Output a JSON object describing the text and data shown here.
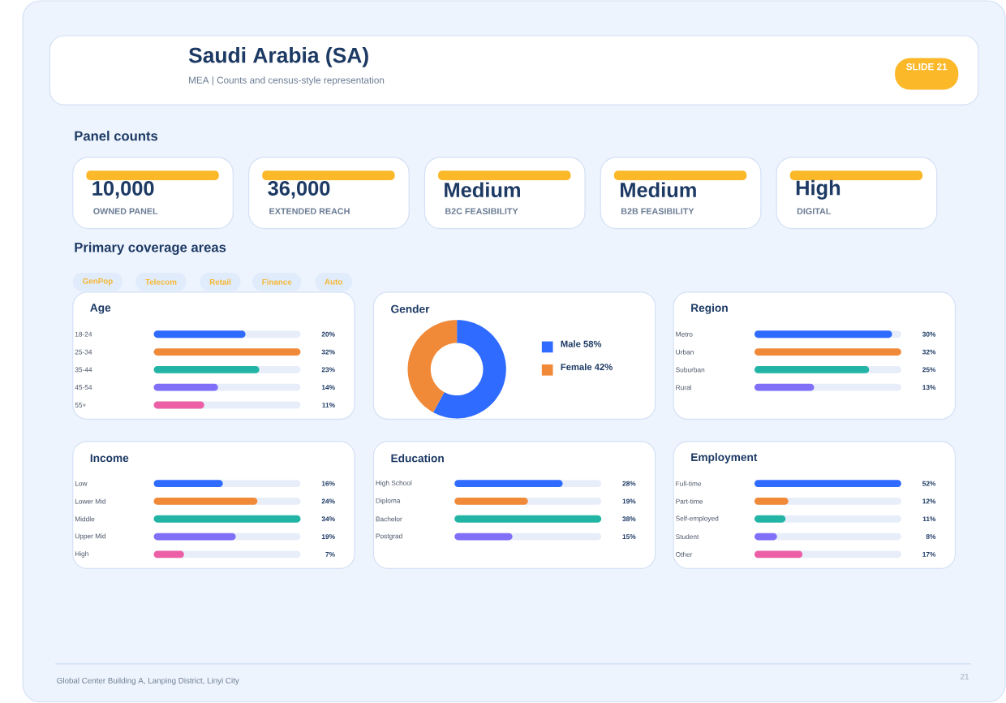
{
  "chart_data": [
    {
      "type": "other",
      "title": "Saudi Arabia (SA)",
      "subtitle": "MEA | Counts and census-style representation",
      "annotations": [
        "SLIDE 21",
        "Global Center Building A, Lanping District, Linyi City",
        "21"
      ]
    },
    {
      "type": "other",
      "title": "Panel counts",
      "annotations": [
        "10,000",
        "OWNED PANEL",
        "36,000",
        "EXTENDED REACH",
        "Medium",
        "B2C FEASIBILITY",
        "Medium",
        "B2B FEASIBILITY",
        "High",
        "DIGITAL"
      ]
    },
    {
      "type": "other",
      "title": "Primary coverage areas",
      "annotations": [
        "GenPop",
        "Telecom",
        "Retail",
        "Finance",
        "Auto"
      ]
    },
    {
      "type": "bar",
      "orientation": "horizontal",
      "title": "Age",
      "categories": [
        "18-24",
        "25-34",
        "35-44",
        "45-54",
        "55+"
      ],
      "values": [
        20,
        32,
        23,
        14,
        11
      ],
      "value_labels": [
        "20%",
        "32%",
        "23%",
        "14%",
        "11%"
      ],
      "colors": [
        "#2f6bff",
        "#f08a38",
        "#22b5a5",
        "#8070f7",
        "#ec5fa6"
      ]
    },
    {
      "type": "donut",
      "title": "Gender",
      "categories": [
        "Male",
        "Female"
      ],
      "values": [
        58,
        42
      ],
      "value_labels": [
        "58%",
        "42%"
      ],
      "colors": [
        "#2f6bff",
        "#f08a38"
      ],
      "legend": "right"
    },
    {
      "type": "bar",
      "orientation": "horizontal",
      "title": "Region",
      "categories": [
        "Metro",
        "Urban",
        "Suburban",
        "Rural"
      ],
      "values": [
        30,
        32,
        25,
        13
      ],
      "value_labels": [
        "30%",
        "32%",
        "25%",
        "13%"
      ],
      "colors": [
        "#2f6bff",
        "#f08a38",
        "#22b5a5",
        "#8070f7"
      ]
    },
    {
      "type": "bar",
      "orientation": "horizontal",
      "title": "Income",
      "categories": [
        "Low",
        "Lower Mid",
        "Middle",
        "Upper Mid",
        "High"
      ],
      "values": [
        16,
        24,
        34,
        19,
        7
      ],
      "value_labels": [
        "16%",
        "24%",
        "34%",
        "19%",
        "7%"
      ],
      "colors": [
        "#2f6bff",
        "#f08a38",
        "#22b5a5",
        "#8070f7",
        "#ec5fa6"
      ]
    },
    {
      "type": "bar",
      "orientation": "horizontal",
      "title": "Education",
      "categories": [
        "High School",
        "Diploma",
        "Bachelor",
        "Postgrad"
      ],
      "values": [
        28,
        19,
        38,
        15
      ],
      "value_labels": [
        "28%",
        "19%",
        "38%",
        "15%"
      ],
      "colors": [
        "#2f6bff",
        "#f08a38",
        "#22b5a5",
        "#8070f7"
      ]
    },
    {
      "type": "bar",
      "orientation": "horizontal",
      "title": "Employment",
      "categories": [
        "Full-time",
        "Part-time",
        "Self-employed",
        "Student",
        "Other"
      ],
      "values": [
        52,
        12,
        11,
        8,
        17
      ],
      "value_labels": [
        "52%",
        "12%",
        "11%",
        "8%",
        "17%"
      ],
      "colors": [
        "#2f6bff",
        "#f08a38",
        "#22b5a5",
        "#8070f7",
        "#ec5fa6"
      ]
    }
  ]
}
